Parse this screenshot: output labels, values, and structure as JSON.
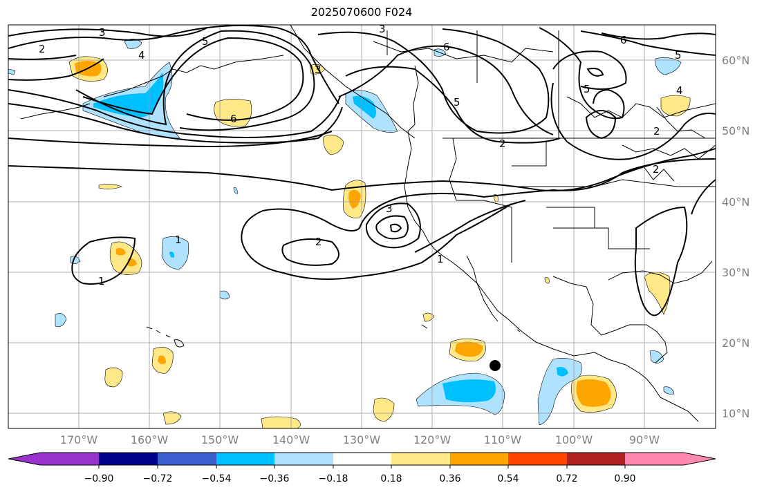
{
  "map": {
    "title": "2025070600 F024",
    "lon_labels": [
      "170°W",
      "160°W",
      "150°W",
      "140°W",
      "130°W",
      "120°W",
      "110°W",
      "100°W",
      "90°W"
    ],
    "lat_labels": [
      "60°N",
      "50°N",
      "40°N",
      "30°N",
      "20°N",
      "10°N"
    ],
    "contour_labels": [
      "2",
      "3",
      "5",
      "4",
      "6",
      "3",
      "5",
      "6",
      "5",
      "4",
      "2",
      "6",
      "5",
      "2",
      "3",
      "2",
      "1",
      "1",
      "1",
      "2",
      "3"
    ],
    "marker": "black-dot"
  },
  "colorbar": {
    "ticks": [
      "−0.90",
      "−0.72",
      "−0.54",
      "−0.36",
      "−0.18",
      "0.18",
      "0.36",
      "0.54",
      "0.72",
      "0.90"
    ],
    "colors": [
      "#9933cc",
      "#00008b",
      "#3a5fcd",
      "#00bfff",
      "#aee2ff",
      "#ffffff",
      "#ffe888",
      "#ffa500",
      "#ff4500",
      "#b22222",
      "#ff88b0"
    ]
  }
}
